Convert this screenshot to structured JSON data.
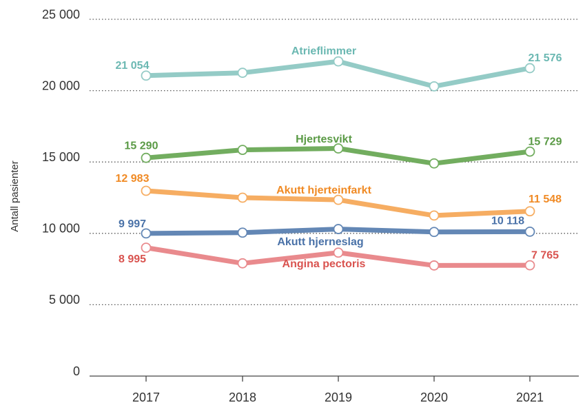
{
  "chart_data": {
    "type": "line",
    "y_label": "Antall pasienter",
    "x": [
      "2017",
      "2018",
      "2019",
      "2020",
      "2021"
    ],
    "ylim": [
      0,
      25000
    ],
    "yticks": [
      0,
      {
        "value": 5000,
        "label": "5 000"
      },
      {
        "value": 10000,
        "label": "10 000"
      },
      {
        "value": 15000,
        "label": "15 000"
      },
      {
        "value": 20000,
        "label": "20 000"
      },
      {
        "value": 25000,
        "label": "25 000"
      }
    ],
    "grid": true,
    "series": [
      {
        "name": "Atrieflimmer",
        "color": "#94cbc6",
        "label_color": "#6bb8b2",
        "values": [
          21054,
          21250,
          22050,
          20300,
          21576
        ],
        "value_labels": [
          "21 054",
          null,
          null,
          null,
          "21 576"
        ]
      },
      {
        "name": "Hjertesvikt",
        "color": "#72ad5f",
        "label_color": "#5a9a45",
        "values": [
          15290,
          15850,
          15950,
          14900,
          15729
        ],
        "value_labels": [
          "15 290",
          null,
          null,
          null,
          "15 729"
        ]
      },
      {
        "name": "Akutt hjerteinfarkt",
        "color": "#f6ad62",
        "label_color": "#f08a24",
        "values": [
          12983,
          12500,
          12350,
          11250,
          11548
        ],
        "value_labels": [
          "12 983",
          null,
          null,
          null,
          "11 548"
        ]
      },
      {
        "name": "Akutt hjerneslag",
        "color": "#6387b5",
        "label_color": "#4a72a8",
        "values": [
          9997,
          10050,
          10300,
          10100,
          10118
        ],
        "value_labels": [
          "9 997",
          null,
          null,
          null,
          "10 118"
        ]
      },
      {
        "name": "Angina pectoris",
        "color": "#e98a8d",
        "label_color": "#d9534f",
        "values": [
          8995,
          7900,
          8650,
          7750,
          7765
        ],
        "value_labels": [
          "8 995",
          null,
          null,
          null,
          "7 765"
        ]
      }
    ]
  }
}
